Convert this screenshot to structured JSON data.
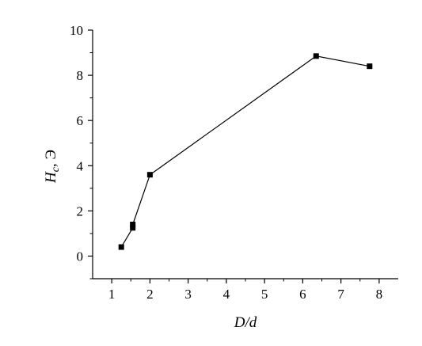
{
  "chart_data": {
    "type": "line",
    "title": "",
    "xlabel": "D/d",
    "ylabel": {
      "symbol": "H",
      "subscript": "c",
      "unit": ", Э"
    },
    "xlim": [
      0.5,
      8.5
    ],
    "ylim": [
      -1,
      10
    ],
    "x_ticks": [
      1,
      2,
      3,
      4,
      5,
      6,
      7,
      8
    ],
    "y_ticks": [
      0,
      2,
      4,
      6,
      8,
      10
    ],
    "grid": false,
    "series": [
      {
        "marker": "square",
        "color": "#000000",
        "x": [
          1.25,
          1.55,
          1.55,
          2.0,
          6.35,
          7.75
        ],
        "y": [
          0.4,
          1.25,
          1.4,
          3.6,
          8.85,
          8.4
        ]
      }
    ]
  }
}
